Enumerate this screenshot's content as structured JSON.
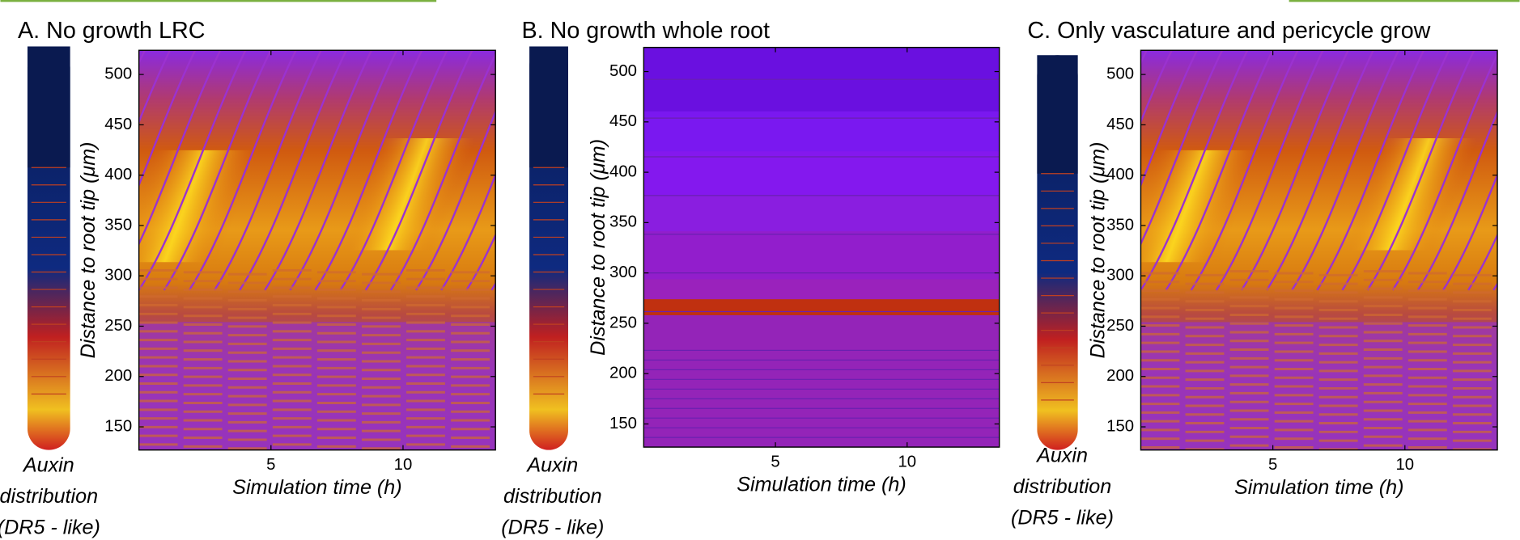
{
  "chart_data": [
    {
      "type": "heatmap",
      "title": "A. No growth LRC",
      "xlabel": "Simulation time (h)",
      "ylabel": "Distance to root tip (μm)",
      "xlim": [
        0,
        13.5
      ],
      "ylim": [
        127,
        524
      ],
      "xticks": [
        5,
        10
      ],
      "yticks": [
        150,
        200,
        250,
        300,
        350,
        400,
        450,
        500
      ],
      "caption": [
        "Auxin",
        "distribution",
        "(DR5 - like)"
      ]
    },
    {
      "type": "heatmap",
      "title": "B. No growth whole root",
      "xlabel": "Simulation time (h)",
      "ylabel": "Distance to root tip (μm)",
      "xlim": [
        0,
        13.5
      ],
      "ylim": [
        127,
        524
      ],
      "xticks": [
        5,
        10
      ],
      "yticks": [
        150,
        200,
        250,
        300,
        350,
        400,
        450,
        500
      ],
      "caption": [
        "Auxin",
        "distribution",
        "(DR5 - like)"
      ]
    },
    {
      "type": "heatmap",
      "title": "C. Only vasculature and pericycle grow",
      "xlabel": "Simulation time (h)",
      "ylabel": "Distance to root tip (μm)",
      "xlim": [
        0,
        13.5
      ],
      "ylim": [
        127,
        524
      ],
      "xticks": [
        5,
        10
      ],
      "yticks": [
        150,
        200,
        250,
        300,
        350,
        400,
        450,
        500
      ],
      "caption": [
        "Auxin",
        "distribution",
        "(DR5 - like)"
      ]
    }
  ]
}
